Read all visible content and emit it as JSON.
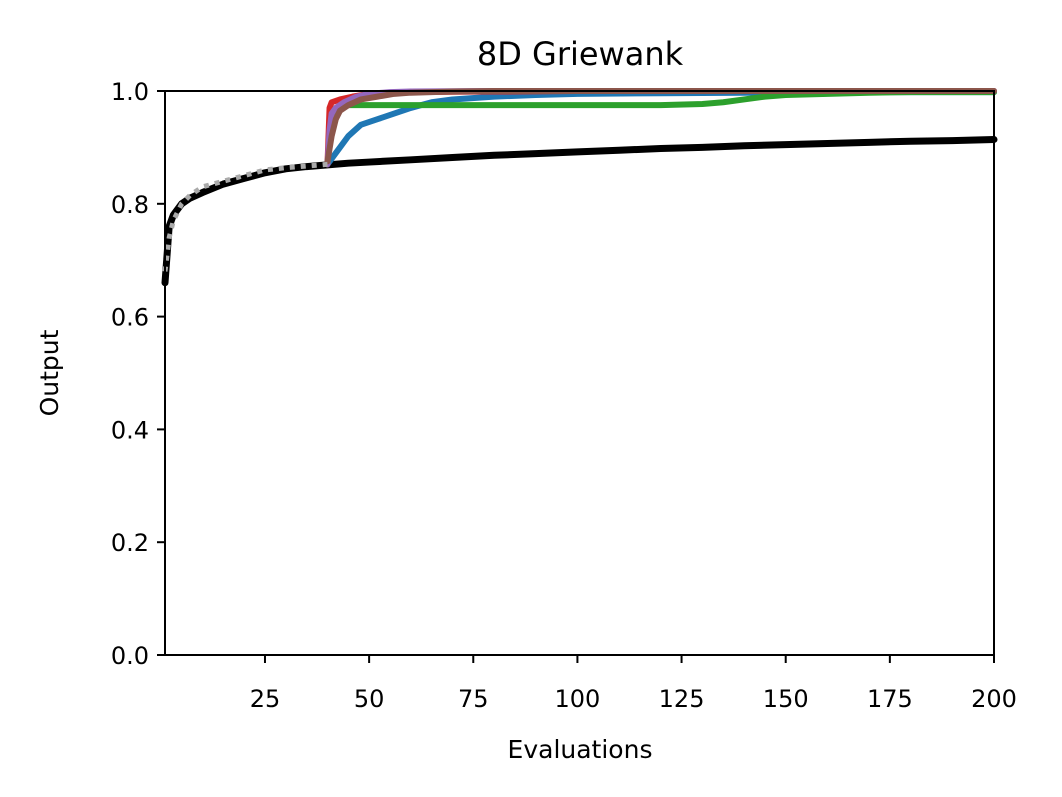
{
  "chart_data": {
    "type": "line",
    "title": "8D Griewank",
    "xlabel": "Evaluations",
    "ylabel": "Output",
    "xlim": [
      1,
      200
    ],
    "ylim": [
      0.0,
      1.0
    ],
    "xticks": [
      25,
      50,
      75,
      100,
      125,
      150,
      175,
      200
    ],
    "xtick_labels": [
      "25",
      "50",
      "75",
      "100",
      "125",
      "150",
      "175",
      "200"
    ],
    "yticks": [
      0.0,
      0.2,
      0.4,
      0.6,
      0.8,
      1.0
    ],
    "ytick_labels": [
      "0.0",
      "0.2",
      "0.4",
      "0.6",
      "0.8",
      "1.0"
    ],
    "grid": false,
    "series": [
      {
        "color": "#000000",
        "style": "solid",
        "x": [
          1,
          2,
          3,
          5,
          7,
          10,
          15,
          20,
          25,
          30,
          35,
          40,
          45,
          50,
          60,
          70,
          80,
          90,
          100,
          110,
          120,
          130,
          140,
          150,
          160,
          170,
          180,
          190,
          200
        ],
        "y": [
          0.66,
          0.76,
          0.78,
          0.8,
          0.81,
          0.82,
          0.835,
          0.845,
          0.855,
          0.862,
          0.866,
          0.869,
          0.872,
          0.874,
          0.878,
          0.882,
          0.886,
          0.889,
          0.892,
          0.895,
          0.898,
          0.9,
          0.903,
          0.905,
          0.907,
          0.909,
          0.911,
          0.912,
          0.914
        ]
      },
      {
        "color": "#aaaaaa",
        "style": "dotted",
        "x": [
          1,
          2,
          3,
          5,
          7,
          10,
          15,
          20,
          25,
          30,
          35,
          40
        ],
        "y": [
          0.68,
          0.74,
          0.77,
          0.8,
          0.815,
          0.83,
          0.84,
          0.85,
          0.86,
          0.864,
          0.867,
          0.87
        ]
      },
      {
        "color": "#1f77b4",
        "style": "solid",
        "x": [
          40,
          42,
          45,
          48,
          52,
          56,
          60,
          65,
          70,
          80,
          90,
          100,
          120,
          140,
          160,
          180,
          200
        ],
        "y": [
          0.87,
          0.89,
          0.92,
          0.94,
          0.95,
          0.96,
          0.97,
          0.98,
          0.985,
          0.99,
          0.993,
          0.995,
          0.996,
          0.997,
          0.998,
          0.998,
          0.998
        ]
      },
      {
        "color": "#2ca02c",
        "style": "solid",
        "x": [
          40,
          41,
          42,
          45,
          50,
          60,
          70,
          80,
          100,
          120,
          130,
          135,
          140,
          145,
          150,
          160,
          170,
          180,
          190,
          200
        ],
        "y": [
          0.87,
          0.95,
          0.97,
          0.975,
          0.975,
          0.975,
          0.975,
          0.975,
          0.975,
          0.975,
          0.977,
          0.98,
          0.985,
          0.99,
          0.993,
          0.995,
          0.997,
          0.998,
          0.998,
          0.998
        ]
      },
      {
        "color": "#d62728",
        "style": "solid",
        "x": [
          40,
          40.5,
          41,
          43,
          46,
          50,
          60,
          80,
          100,
          150,
          200
        ],
        "y": [
          0.87,
          0.97,
          0.98,
          0.985,
          0.99,
          0.995,
          0.998,
          0.999,
          1.0,
          1.0,
          1.0
        ]
      },
      {
        "color": "#9467bd",
        "style": "solid",
        "x": [
          40,
          40.5,
          41,
          42,
          44,
          47,
          50,
          55,
          60,
          80,
          100,
          150,
          200
        ],
        "y": [
          0.87,
          0.93,
          0.96,
          0.97,
          0.98,
          0.99,
          0.995,
          0.998,
          0.999,
          1.0,
          1.0,
          1.0,
          1.0
        ]
      },
      {
        "color": "#8c564b",
        "style": "solid",
        "x": [
          40,
          41,
          42,
          43,
          45,
          48,
          52,
          56,
          60,
          70,
          80,
          100,
          150,
          200
        ],
        "y": [
          0.875,
          0.92,
          0.95,
          0.965,
          0.975,
          0.985,
          0.99,
          0.995,
          0.997,
          0.999,
          1.0,
          1.0,
          1.0,
          1.0
        ]
      }
    ]
  }
}
